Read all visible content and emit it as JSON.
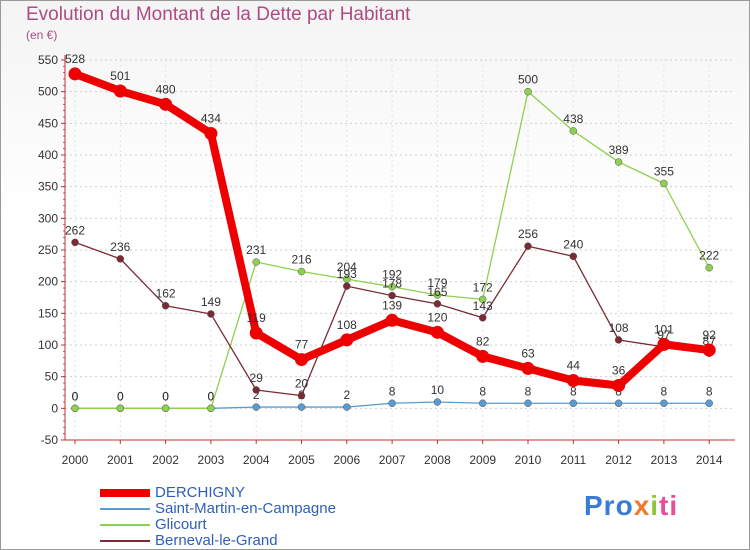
{
  "chart_data": {
    "type": "line",
    "title": "Evolution du Montant de la Dette par Habitant",
    "subtitle": "(en €)",
    "x": [
      "2000",
      "2001",
      "2002",
      "2003",
      "2004",
      "2005",
      "2006",
      "2007",
      "2008",
      "2009",
      "2010",
      "2011",
      "2012",
      "2013",
      "2014"
    ],
    "ylim": [
      -50,
      550
    ],
    "yticks": [
      -50,
      0,
      50,
      100,
      150,
      200,
      250,
      300,
      350,
      400,
      450,
      500,
      550
    ],
    "grid": true,
    "legend_position": "bottom-left",
    "series": [
      {
        "name": "DERCHIGNY",
        "color": "#ee0000",
        "values": [
          528,
          501,
          480,
          434,
          119,
          77,
          108,
          139,
          120,
          82,
          63,
          44,
          36,
          101,
          92
        ]
      },
      {
        "name": "Saint-Martin-en-Campagne",
        "color": "#5a9bd0",
        "values": [
          0,
          0,
          0,
          0,
          2,
          2,
          2,
          8,
          10,
          8,
          8,
          8,
          8,
          8,
          8
        ]
      },
      {
        "name": "Glicourt",
        "color": "#8ed050",
        "values": [
          0,
          0,
          0,
          0,
          231,
          216,
          204,
          192,
          179,
          172,
          500,
          438,
          389,
          355,
          222
        ]
      },
      {
        "name": "Berneval-le-Grand",
        "color": "#7a2a35",
        "values": [
          262,
          236,
          162,
          149,
          29,
          20,
          193,
          178,
          165,
          143,
          256,
          240,
          108,
          97,
          87
        ]
      }
    ]
  },
  "logo": {
    "p1": "Pro",
    "p2": "x",
    "p3": "i",
    "p4": "ti"
  }
}
